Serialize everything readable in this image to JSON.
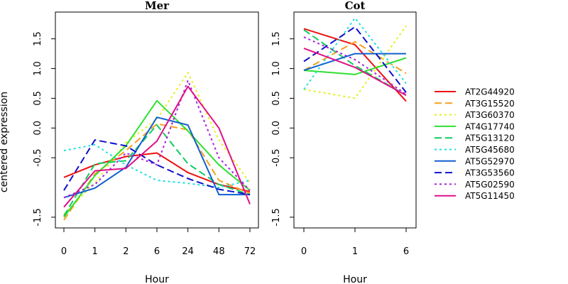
{
  "figure": {
    "ylabel": "centered expression",
    "legend": {
      "placement": "right",
      "entries": [
        {
          "name": "AT2G44920",
          "color": "#ee1111",
          "dash": "solid"
        },
        {
          "name": "AT3G15520",
          "color": "#f4a020",
          "dash": "dashed"
        },
        {
          "name": "AT3G60370",
          "color": "#e6f020",
          "dash": "dotted"
        },
        {
          "name": "AT4G17740",
          "color": "#30e030",
          "dash": "solid"
        },
        {
          "name": "AT5G13120",
          "color": "#10cc60",
          "dash": "dashed"
        },
        {
          "name": "AT5G45680",
          "color": "#20e0e0",
          "dash": "dotted"
        },
        {
          "name": "AT5G52970",
          "color": "#1060d0",
          "dash": "solid"
        },
        {
          "name": "AT3G53560",
          "color": "#1010cc",
          "dash": "dashed"
        },
        {
          "name": "AT5G02590",
          "color": "#aa20dd",
          "dash": "dotted"
        },
        {
          "name": "AT5G11450",
          "color": "#e0108a",
          "dash": "solid"
        }
      ]
    }
  },
  "chart_data": [
    {
      "type": "line",
      "title": "Mer",
      "xlabel": "Hour",
      "ylabel": "centered expression",
      "categories": [
        "0",
        "1",
        "2",
        "6",
        "24",
        "48",
        "72"
      ],
      "ylim": [
        -1.68,
        1.95
      ],
      "yticks": [
        -1.5,
        -0.5,
        0.0,
        0.5,
        1.0,
        1.5
      ],
      "ytick_labels": [
        "-1.5",
        "-0.5",
        "0.0",
        "0.5",
        "1.0",
        "1.5"
      ],
      "grid": false,
      "series": [
        {
          "name": "AT2G44920",
          "values": [
            -0.83,
            -0.62,
            -0.48,
            -0.42,
            -0.75,
            -0.95,
            -1.07
          ]
        },
        {
          "name": "AT3G15520",
          "values": [
            -1.55,
            -0.77,
            -0.38,
            0.07,
            -0.03,
            -0.88,
            -1.1
          ]
        },
        {
          "name": "AT3G60370",
          "values": [
            -1.45,
            -0.92,
            -0.25,
            0.15,
            0.93,
            -0.2,
            -0.92
          ]
        },
        {
          "name": "AT4G17740",
          "values": [
            -1.5,
            -0.8,
            -0.3,
            0.46,
            -0.05,
            -0.62,
            -1.05
          ]
        },
        {
          "name": "AT5G13120",
          "values": [
            -1.48,
            -0.6,
            -0.55,
            0.05,
            -0.6,
            -0.95,
            -1.12
          ]
        },
        {
          "name": "AT5G45680",
          "values": [
            -0.38,
            -0.28,
            -0.62,
            -0.88,
            -0.93,
            -1.0,
            -0.88
          ]
        },
        {
          "name": "AT5G52970",
          "values": [
            -1.17,
            -1.01,
            -0.66,
            0.18,
            0.05,
            -1.12,
            -1.12
          ]
        },
        {
          "name": "AT3G53560",
          "values": [
            -1.05,
            -0.2,
            -0.3,
            -0.62,
            -0.85,
            -1.03,
            -1.12
          ]
        },
        {
          "name": "AT5G02590",
          "values": [
            -1.17,
            -0.95,
            -0.42,
            -0.62,
            0.8,
            -0.5,
            -1.05
          ]
        },
        {
          "name": "AT5G11450",
          "values": [
            -1.33,
            -0.72,
            -0.68,
            -0.22,
            0.7,
            0.0,
            -1.28
          ]
        }
      ]
    },
    {
      "type": "line",
      "title": "Cot",
      "xlabel": "Hour",
      "ylabel": "",
      "categories": [
        "0",
        "1",
        "6"
      ],
      "ylim": [
        -1.68,
        1.95
      ],
      "yticks": [
        -1.5,
        -0.5,
        0.0,
        0.5,
        1.0,
        1.5
      ],
      "ytick_labels": [
        "-1.5",
        "-0.5",
        "0.0",
        "0.5",
        "1.0",
        "1.5"
      ],
      "grid": false,
      "series": [
        {
          "name": "AT2G44920",
          "values": [
            1.67,
            1.4,
            0.45
          ]
        },
        {
          "name": "AT3G15520",
          "values": [
            0.97,
            1.45,
            0.92
          ]
        },
        {
          "name": "AT3G60370",
          "values": [
            0.65,
            0.5,
            1.72
          ]
        },
        {
          "name": "AT4G17740",
          "values": [
            0.97,
            0.9,
            1.18
          ]
        },
        {
          "name": "AT5G13120",
          "values": [
            1.65,
            1.05,
            0.55
          ]
        },
        {
          "name": "AT5G45680",
          "values": [
            0.65,
            1.85,
            0.75
          ]
        },
        {
          "name": "AT5G52970",
          "values": [
            0.97,
            1.25,
            1.25
          ]
        },
        {
          "name": "AT3G53560",
          "values": [
            1.12,
            1.7,
            0.6
          ]
        },
        {
          "name": "AT5G02590",
          "values": [
            1.53,
            1.15,
            0.57
          ]
        },
        {
          "name": "AT5G11450",
          "values": [
            1.34,
            1.02,
            0.55
          ]
        }
      ]
    }
  ]
}
